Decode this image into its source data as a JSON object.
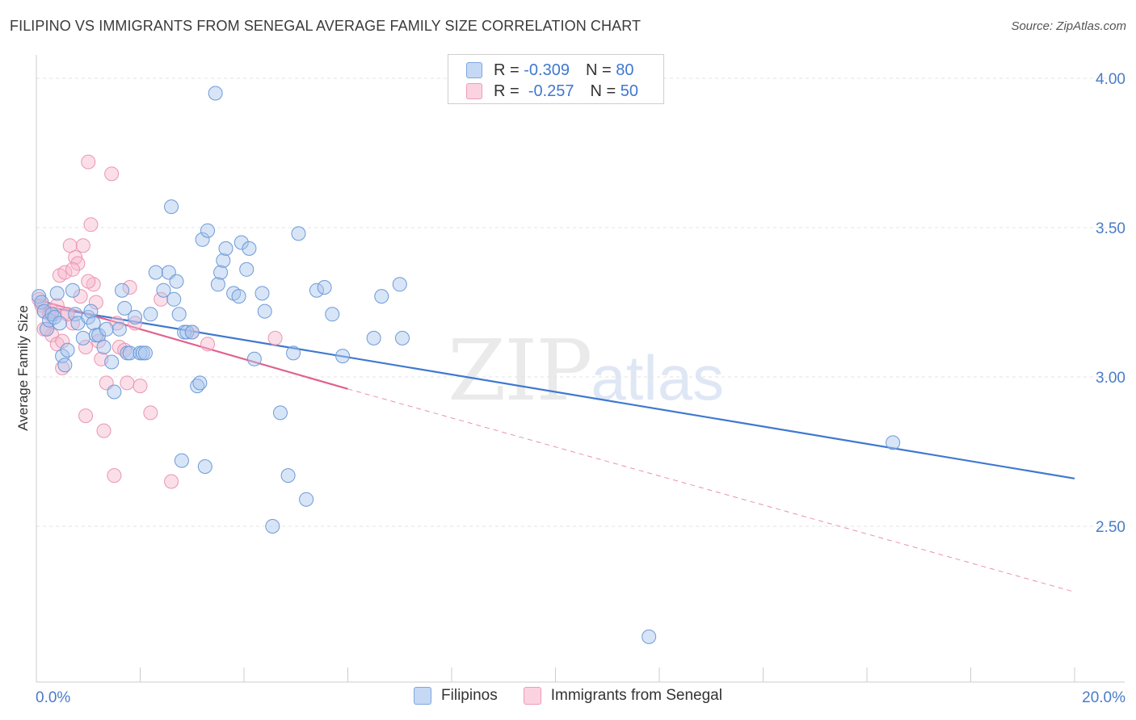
{
  "header": {
    "title": "FILIPINO VS IMMIGRANTS FROM SENEGAL AVERAGE FAMILY SIZE CORRELATION CHART",
    "source": "Source: ZipAtlas.com"
  },
  "watermark": {
    "zip": "ZIP",
    "atlas": "atlas"
  },
  "legend": {
    "rows": [
      {
        "r_label": "R =",
        "r_value": "-0.309",
        "n_label": "N =",
        "n_value": "80",
        "color": "#a9c6ee"
      },
      {
        "r_label": "R =",
        "r_value": "-0.257",
        "n_label": "N =",
        "n_value": "50",
        "color": "#f6b8cc"
      }
    ]
  },
  "bottom_legend": {
    "filipinos": "Filipinos",
    "senegal": "Immigrants from Senegal"
  },
  "chart_data": {
    "type": "scatter",
    "title": "FILIPINO VS IMMIGRANTS FROM SENEGAL AVERAGE FAMILY SIZE CORRELATION CHART",
    "xlabel": "",
    "ylabel": "Average Family Size",
    "xlim": [
      0,
      20
    ],
    "ylim": [
      2.0,
      4.05
    ],
    "x_tick_labels": [
      "0.0%",
      "20.0%"
    ],
    "y_ticks": [
      4.0,
      3.5,
      3.0,
      2.5
    ],
    "y_tick_labels": [
      "4.00",
      "3.50",
      "3.00",
      "2.50"
    ],
    "grid": true,
    "colors": {
      "filipinos": "#3f78cf",
      "senegal": "#e0628f"
    },
    "series": [
      {
        "name": "Filipinos",
        "x": [
          0.05,
          0.1,
          0.15,
          0.2,
          0.25,
          0.3,
          0.35,
          0.4,
          0.45,
          0.5,
          0.55,
          0.6,
          0.7,
          0.75,
          0.8,
          0.9,
          1.0,
          1.05,
          1.1,
          1.15,
          1.2,
          1.3,
          1.35,
          1.45,
          1.5,
          1.6,
          1.65,
          1.7,
          1.75,
          1.8,
          1.9,
          2.0,
          2.05,
          2.1,
          2.2,
          2.3,
          2.45,
          2.55,
          2.6,
          2.65,
          2.7,
          2.75,
          2.8,
          2.85,
          2.9,
          3.0,
          3.1,
          3.15,
          3.2,
          3.25,
          3.3,
          3.45,
          3.5,
          3.55,
          3.6,
          3.65,
          3.8,
          3.9,
          3.95,
          4.05,
          4.1,
          4.2,
          4.35,
          4.4,
          4.55,
          4.7,
          4.85,
          4.95,
          5.05,
          5.2,
          5.4,
          5.55,
          5.7,
          5.9,
          6.5,
          6.65,
          7.0,
          7.05,
          16.5,
          11.8
        ],
        "y": [
          3.27,
          3.25,
          3.22,
          3.16,
          3.19,
          3.21,
          3.2,
          3.28,
          3.18,
          3.07,
          3.04,
          3.09,
          3.29,
          3.21,
          3.18,
          3.13,
          3.2,
          3.22,
          3.18,
          3.14,
          3.14,
          3.1,
          3.16,
          3.05,
          2.95,
          3.16,
          3.29,
          3.23,
          3.08,
          3.08,
          3.2,
          3.08,
          3.08,
          3.08,
          3.21,
          3.35,
          3.29,
          3.35,
          3.57,
          3.26,
          3.32,
          3.21,
          2.72,
          3.15,
          3.15,
          3.15,
          2.97,
          2.98,
          3.46,
          2.7,
          3.49,
          3.95,
          3.31,
          3.35,
          3.39,
          3.43,
          3.28,
          3.27,
          3.45,
          3.36,
          3.43,
          3.06,
          3.28,
          3.22,
          2.5,
          2.88,
          2.67,
          3.08,
          3.48,
          2.59,
          3.29,
          3.3,
          3.21,
          3.07,
          3.13,
          3.27,
          3.31,
          3.13,
          2.78,
          2.13
        ]
      },
      {
        "name": "Immigrants from Senegal",
        "x": [
          0.05,
          0.1,
          0.15,
          0.2,
          0.25,
          0.3,
          0.35,
          0.4,
          0.45,
          0.5,
          0.55,
          0.6,
          0.65,
          0.7,
          0.75,
          0.8,
          0.85,
          0.9,
          0.95,
          1.0,
          1.05,
          1.1,
          1.15,
          1.2,
          1.25,
          1.35,
          1.45,
          1.5,
          1.55,
          1.6,
          1.7,
          1.75,
          1.8,
          1.9,
          2.0,
          2.2,
          2.4,
          2.6,
          3.0,
          3.3,
          4.6,
          0.3,
          0.5,
          0.7,
          1.0,
          1.3,
          0.15,
          0.4,
          0.95,
          0.6
        ],
        "y": [
          3.26,
          3.24,
          3.22,
          3.16,
          3.21,
          3.14,
          3.21,
          3.11,
          3.34,
          3.03,
          3.35,
          3.21,
          3.44,
          3.18,
          3.4,
          3.38,
          3.27,
          3.44,
          2.87,
          3.72,
          3.51,
          3.31,
          3.25,
          3.12,
          3.06,
          2.98,
          3.68,
          2.67,
          3.18,
          3.1,
          3.09,
          2.98,
          3.3,
          3.18,
          2.97,
          2.88,
          3.26,
          2.65,
          3.15,
          3.11,
          3.13,
          3.22,
          3.12,
          3.36,
          3.32,
          2.82,
          3.16,
          3.24,
          3.1,
          3.21
        ]
      }
    ],
    "trendlines": [
      {
        "series": "Filipinos",
        "x": [
          0.0,
          20.0
        ],
        "y": [
          3.24,
          2.66
        ],
        "style": "solid"
      },
      {
        "series": "Immigrants from Senegal",
        "x": [
          0.0,
          6.0
        ],
        "y": [
          3.26,
          2.96
        ],
        "style": "solid"
      },
      {
        "series": "Immigrants from Senegal",
        "x": [
          6.0,
          20.0
        ],
        "y": [
          2.96,
          2.28
        ],
        "style": "dashed"
      }
    ]
  }
}
